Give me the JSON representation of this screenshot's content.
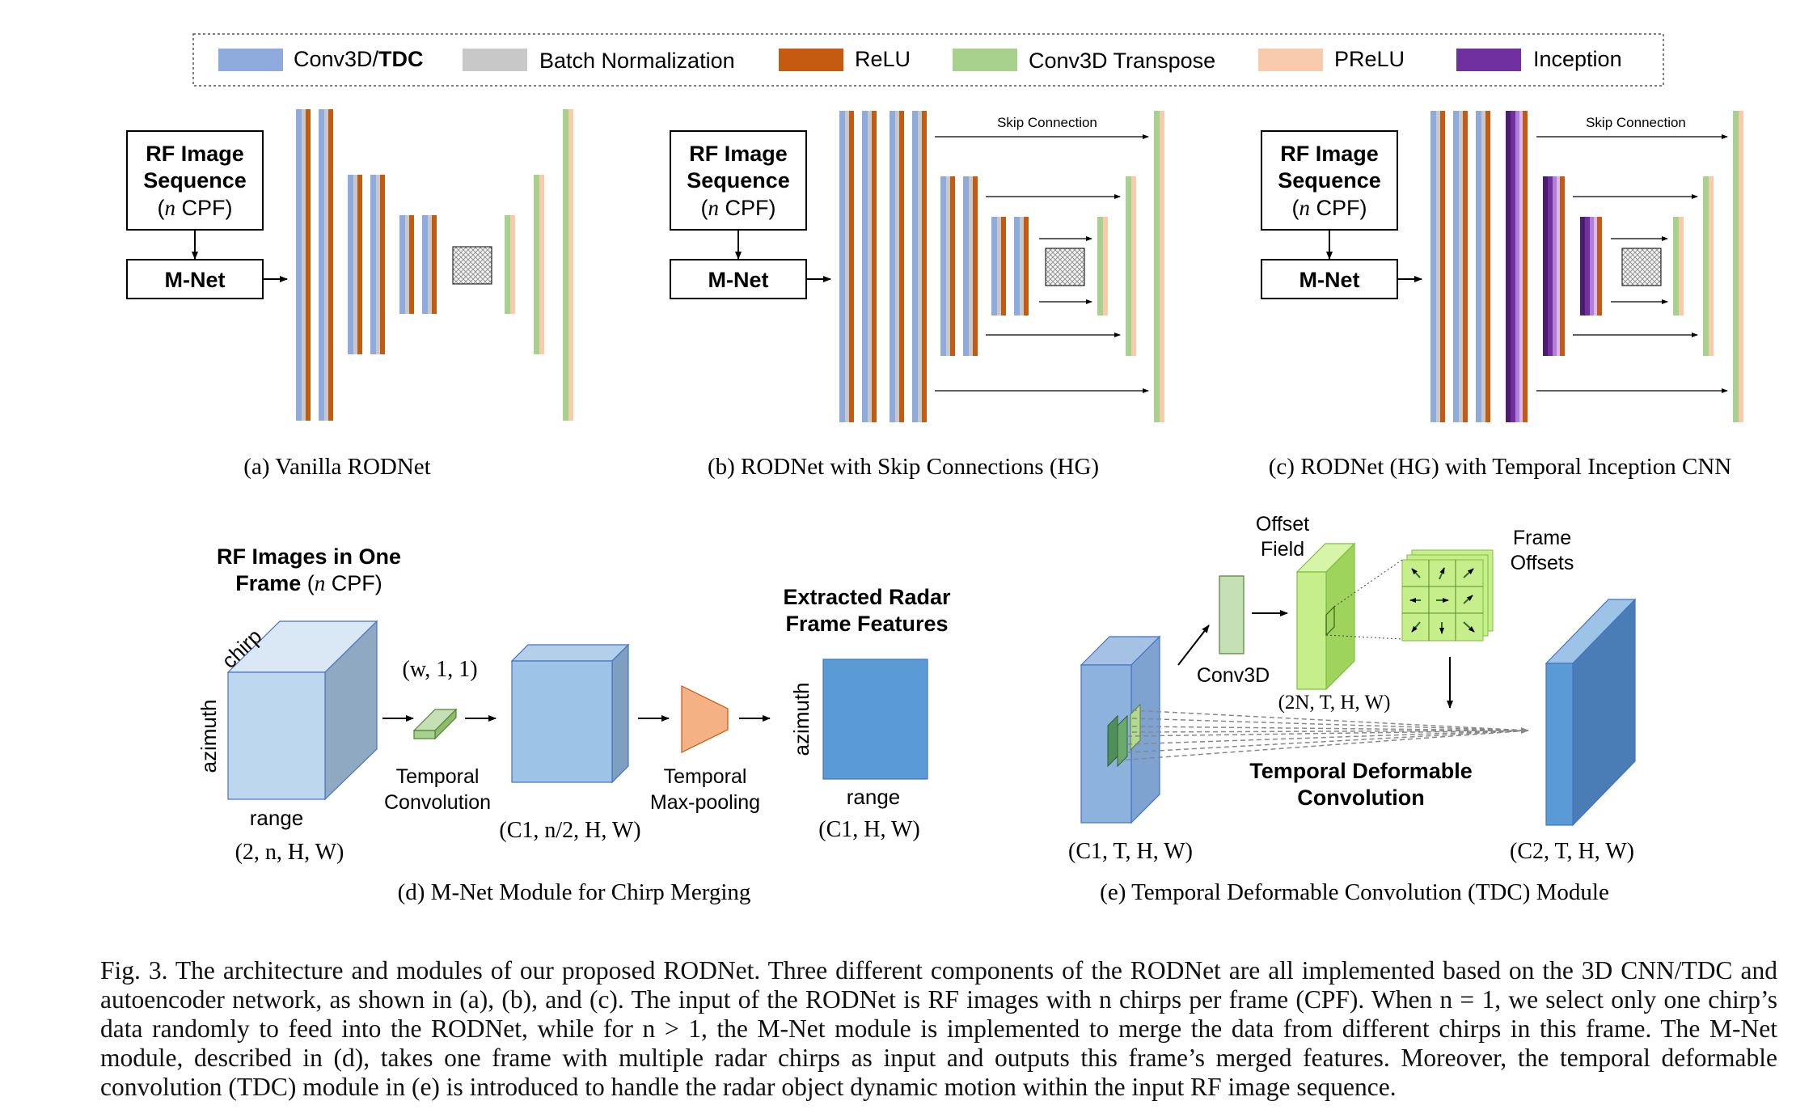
{
  "legend": {
    "items": [
      {
        "label": "Conv3D/",
        "label_bold": "TDC",
        "color": "#8faadc"
      },
      {
        "label": "Batch Normalization",
        "color": "#c8c8c8"
      },
      {
        "label": "ReLU",
        "color": "#c55a11"
      },
      {
        "label": "Conv3D Transpose",
        "color": "#a9d18e"
      },
      {
        "label": "PReLU",
        "color": "#f8cbad"
      },
      {
        "label": "Inception",
        "color": "#7030a0"
      }
    ]
  },
  "panels": {
    "a": {
      "input_line1": "RF Image",
      "input_line2": "Sequence",
      "input_line3_italic": "n",
      "input_line3_rest": " CPF)",
      "mnet": "M-Net",
      "caption": "(a) Vanilla RODNet"
    },
    "b": {
      "input_line1": "RF Image",
      "input_line2": "Sequence",
      "input_line3_italic": "n",
      "input_line3_rest": " CPF)",
      "mnet": "M-Net",
      "skip_label": "Skip Connection",
      "caption": "(b) RODNet with Skip Connections (HG)"
    },
    "c": {
      "input_line1": "RF Image",
      "input_line2": "Sequence",
      "input_line3_italic": "n",
      "input_line3_rest": " CPF)",
      "mnet": "M-Net",
      "skip_label": "Skip Connection",
      "caption": "(c) RODNet (HG) with Temporal Inception CNN"
    },
    "d": {
      "title_line1": "RF Images in One",
      "title_line2_bold": "Frame",
      "title_line2_rest": " (",
      "title_line2_italic": "n",
      "title_line2_end": " CPF)",
      "chirp": "chirp",
      "azimuth": "azimuth",
      "range": "range",
      "input_dims": "(2, n, H, W)",
      "kernel": "(w, 1, 1)",
      "tconv_line1": "Temporal",
      "tconv_line2": "Convolution",
      "mid_dims": "(C1, n/2, H, W)",
      "pool_line1": "Temporal",
      "pool_line2": "Max-pooling",
      "out_title_line1": "Extracted Radar",
      "out_title_line2": "Frame Features",
      "out_azimuth": "azimuth",
      "out_range": "range",
      "out_dims": "(C1, H, W)",
      "caption": "(d) M-Net Module for Chirp Merging"
    },
    "e": {
      "offset_line1": "Offset",
      "offset_line2": "Field",
      "conv3d": "Conv3D",
      "offset_dims": "(2N, T, H, W)",
      "frame_line1": "Frame",
      "frame_line2": "Offsets",
      "tdc_line1": "Temporal Deformable",
      "tdc_line2": "Convolution",
      "in_dims": "(C1, T, H, W)",
      "out_dims": "(C2, T, H, W)",
      "caption": "(e) Temporal Deformable Convolution (TDC) Module"
    }
  },
  "figure_caption": "Fig. 3.  The architecture and modules of our proposed RODNet. Three different components of the RODNet are all implemented based on the 3D CNN/TDC and autoencoder network, as shown in (a), (b), and (c). The input of the RODNet is RF images with n chirps per frame (CPF). When n = 1, we select only one chirp’s data randomly to feed into the RODNet, while for n > 1, the M-Net module is implemented to merge the data from different chirps in this frame. The M-Net module, described in (d), takes one frame with multiple radar chirps as input and outputs this frame’s merged features. Moreover, the temporal deformable convolution (TDC) module in (e) is introduced to handle the radar object dynamic motion within the input RF image sequence."
}
